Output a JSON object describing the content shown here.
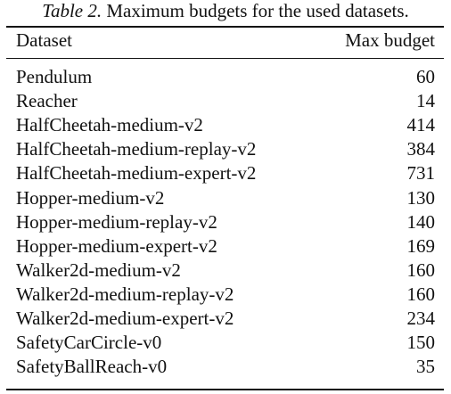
{
  "caption": {
    "label": "Table 2.",
    "text": "Maximum budgets for the used datasets."
  },
  "table": {
    "headers": [
      "Dataset",
      "Max budget"
    ],
    "rows": [
      [
        "Pendulum",
        "60"
      ],
      [
        "Reacher",
        "14"
      ],
      [
        "HalfCheetah-medium-v2",
        "414"
      ],
      [
        "HalfCheetah-medium-replay-v2",
        "384"
      ],
      [
        "HalfCheetah-medium-expert-v2",
        "731"
      ],
      [
        "Hopper-medium-v2",
        "130"
      ],
      [
        "Hopper-medium-replay-v2",
        "140"
      ],
      [
        "Hopper-medium-expert-v2",
        "169"
      ],
      [
        "Walker2d-medium-v2",
        "160"
      ],
      [
        "Walker2d-medium-replay-v2",
        "160"
      ],
      [
        "Walker2d-medium-expert-v2",
        "234"
      ],
      [
        "SafetyCarCircle-v0",
        "150"
      ],
      [
        "SafetyBallReach-v0",
        "35"
      ]
    ]
  }
}
